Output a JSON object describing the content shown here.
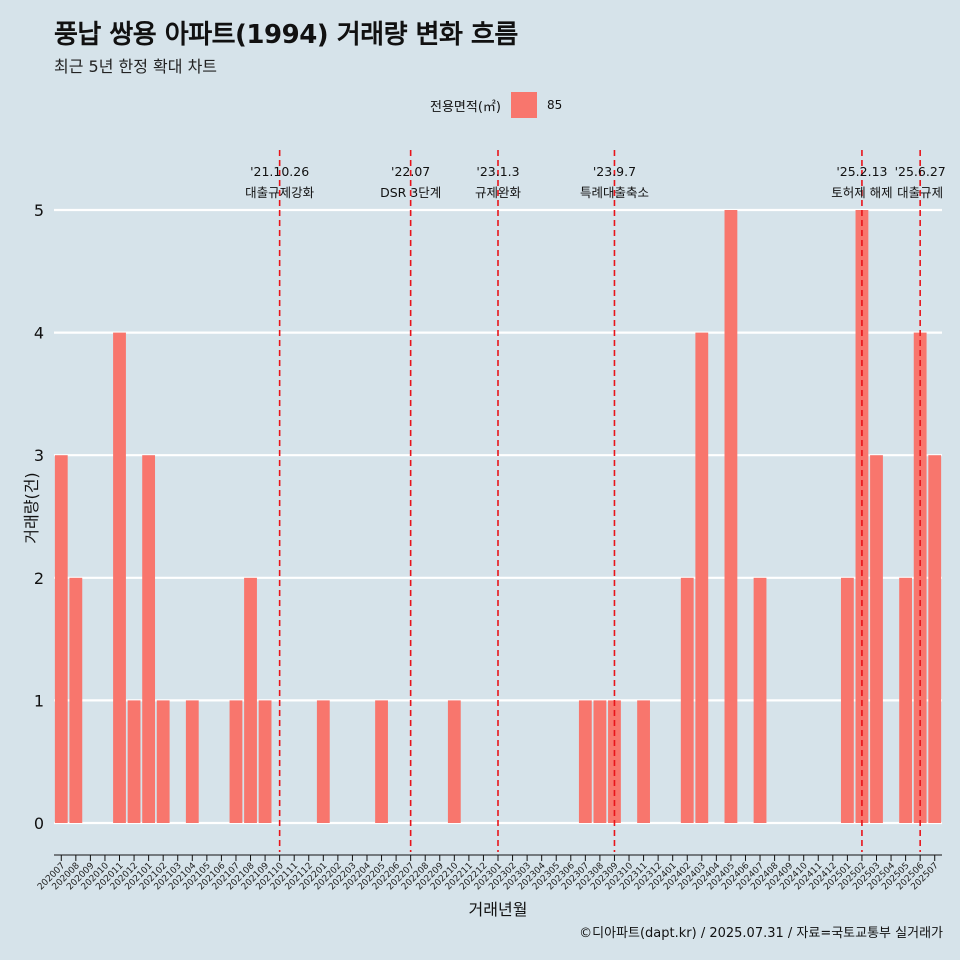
{
  "header": {
    "title": "풍납 쌍용 아파트(1994) 거래량 변화 흐름",
    "subtitle": "최근 5년 한정 확대 차트"
  },
  "legend": {
    "title": "전용면적(㎡)",
    "label": "85",
    "color": "#f8766d"
  },
  "caption": "©디아파트(dapt.kr) / 2025.07.31 / 자료=국토교통부 실거래가",
  "chart_data": {
    "type": "bar",
    "title": "풍납 쌍용 아파트(1994) 거래량 변화 흐름",
    "subtitle": "최근 5년 한정 확대 차트",
    "xlabel": "거래년월",
    "ylabel": "거래량(건)",
    "ylim": [
      0,
      5
    ],
    "yticks": [
      0,
      1,
      2,
      3,
      4,
      5
    ],
    "grid": "horizontal",
    "legend_position": "top",
    "categories": [
      "202007",
      "202008",
      "202009",
      "202010",
      "202011",
      "202012",
      "202101",
      "202102",
      "202103",
      "202104",
      "202105",
      "202106",
      "202107",
      "202108",
      "202109",
      "202110",
      "202111",
      "202112",
      "202201",
      "202202",
      "202203",
      "202204",
      "202205",
      "202206",
      "202207",
      "202208",
      "202209",
      "202210",
      "202211",
      "202212",
      "202301",
      "202302",
      "202303",
      "202304",
      "202305",
      "202306",
      "202307",
      "202308",
      "202309",
      "202310",
      "202311",
      "202312",
      "202401",
      "202402",
      "202403",
      "202404",
      "202405",
      "202406",
      "202407",
      "202408",
      "202409",
      "202410",
      "202411",
      "202412",
      "202501",
      "202502",
      "202503",
      "202504",
      "202505",
      "202506",
      "202507"
    ],
    "series": [
      {
        "name": "85",
        "color": "#f8766d",
        "values": [
          3,
          2,
          0,
          0,
          4,
          1,
          3,
          1,
          0,
          1,
          0,
          0,
          1,
          2,
          1,
          0,
          0,
          0,
          1,
          0,
          0,
          0,
          1,
          0,
          0,
          0,
          0,
          1,
          0,
          0,
          0,
          0,
          0,
          0,
          0,
          0,
          1,
          1,
          1,
          0,
          1,
          0,
          0,
          2,
          4,
          0,
          5,
          0,
          2,
          0,
          0,
          0,
          0,
          0,
          2,
          5,
          3,
          0,
          2,
          4,
          3
        ]
      }
    ],
    "events": [
      {
        "category": "202110",
        "date": "'21.10.26",
        "label": "대출규제강화"
      },
      {
        "category": "202207",
        "date": "'22.07",
        "label": "DSR 3단계"
      },
      {
        "category": "202301",
        "date": "'23.1.3",
        "label": "규제완화"
      },
      {
        "category": "202309",
        "date": "'23.9.7",
        "label": "특례대출축소"
      },
      {
        "category": "202502",
        "date": "'25.2.13",
        "label": "토허제 해제"
      },
      {
        "category": "202506",
        "date": "'25.6.27",
        "label": "대출규제"
      }
    ]
  }
}
